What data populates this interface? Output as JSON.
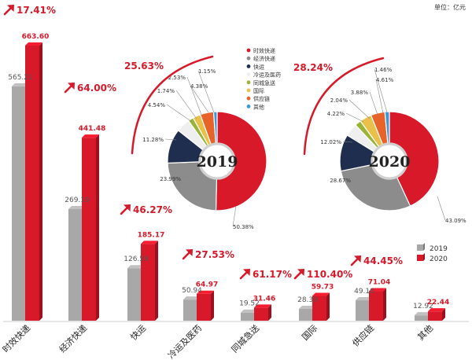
{
  "unit_label": "单位：亿元",
  "chart_data": [
    {
      "type": "bar",
      "categories": [
        "时效快递",
        "经济快递",
        "快运",
        "冷运及医药",
        "同城急送",
        "国际",
        "供应链",
        "其他"
      ],
      "series": [
        {
          "name": "2019",
          "values": [
            565.21,
            269.19,
            126.59,
            50.94,
            19.52,
            28.39,
            49.18,
            12.92
          ]
        },
        {
          "name": "2020",
          "values": [
            663.6,
            441.48,
            185.17,
            64.97,
            31.46,
            59.73,
            71.04,
            22.44
          ]
        }
      ],
      "value_labels": {
        "2019": [
          "565.21",
          "269.19",
          "126.59",
          "50.94",
          "19.52",
          "28.39",
          "49.18",
          "12.92"
        ],
        "2020": [
          "663.60",
          "441.48",
          "185.17",
          "64.97",
          "31.46",
          "59.73",
          "71.04",
          "22.44"
        ]
      },
      "growth_labels": [
        "17.41%",
        "64.00%",
        "46.27%",
        "27.53%",
        "61.17%",
        "110.40%",
        "44.45%"
      ],
      "legend": [
        "2019",
        "2020"
      ],
      "legend_position": "right",
      "grid": false,
      "colors": {
        "2019": "#a8a8a8",
        "2020": "#d7192a",
        "growth": "#d7192a"
      }
    },
    {
      "type": "pie",
      "center_label": "2019",
      "labels": [
        "时效快递",
        "经济快递",
        "快运",
        "冷运及医药",
        "同城急送",
        "国际",
        "供应链",
        "其他"
      ],
      "values": [
        50.38,
        23.99,
        11.28,
        4.54,
        1.74,
        2.53,
        4.38,
        1.15
      ],
      "value_labels": [
        "50.38%",
        "23.99%",
        "11.28%",
        "4.54%",
        "1.74%",
        "2.53%",
        "4.38%",
        "1.15%"
      ],
      "growth_label": "25.63%",
      "legend": [
        "时效快递",
        "经济快递",
        "快运",
        "冷运及医药",
        "同城急送",
        "国际",
        "供应链",
        "其他"
      ],
      "colors": [
        "#d7192a",
        "#8c8c8c",
        "#1f2d4f",
        "#efefef",
        "#9ab43a",
        "#e8c04a",
        "#e8632a",
        "#3a9ad9"
      ]
    },
    {
      "type": "pie",
      "center_label": "2020",
      "labels": [
        "时效快递",
        "经济快递",
        "快运",
        "冷运及医药",
        "同城急送",
        "国际",
        "供应链",
        "其他"
      ],
      "values": [
        43.09,
        28.67,
        12.02,
        4.22,
        2.04,
        3.88,
        4.61,
        1.46
      ],
      "value_labels": [
        "43.09%",
        "28.67%",
        "12.02%",
        "4.22%",
        "2.04%",
        "3.88%",
        "4.61%",
        "1.46%"
      ],
      "growth_label": "28.24%",
      "colors": [
        "#d7192a",
        "#8c8c8c",
        "#1f2d4f",
        "#efefef",
        "#9ab43a",
        "#e8c04a",
        "#e8632a",
        "#3a9ad9"
      ]
    }
  ]
}
